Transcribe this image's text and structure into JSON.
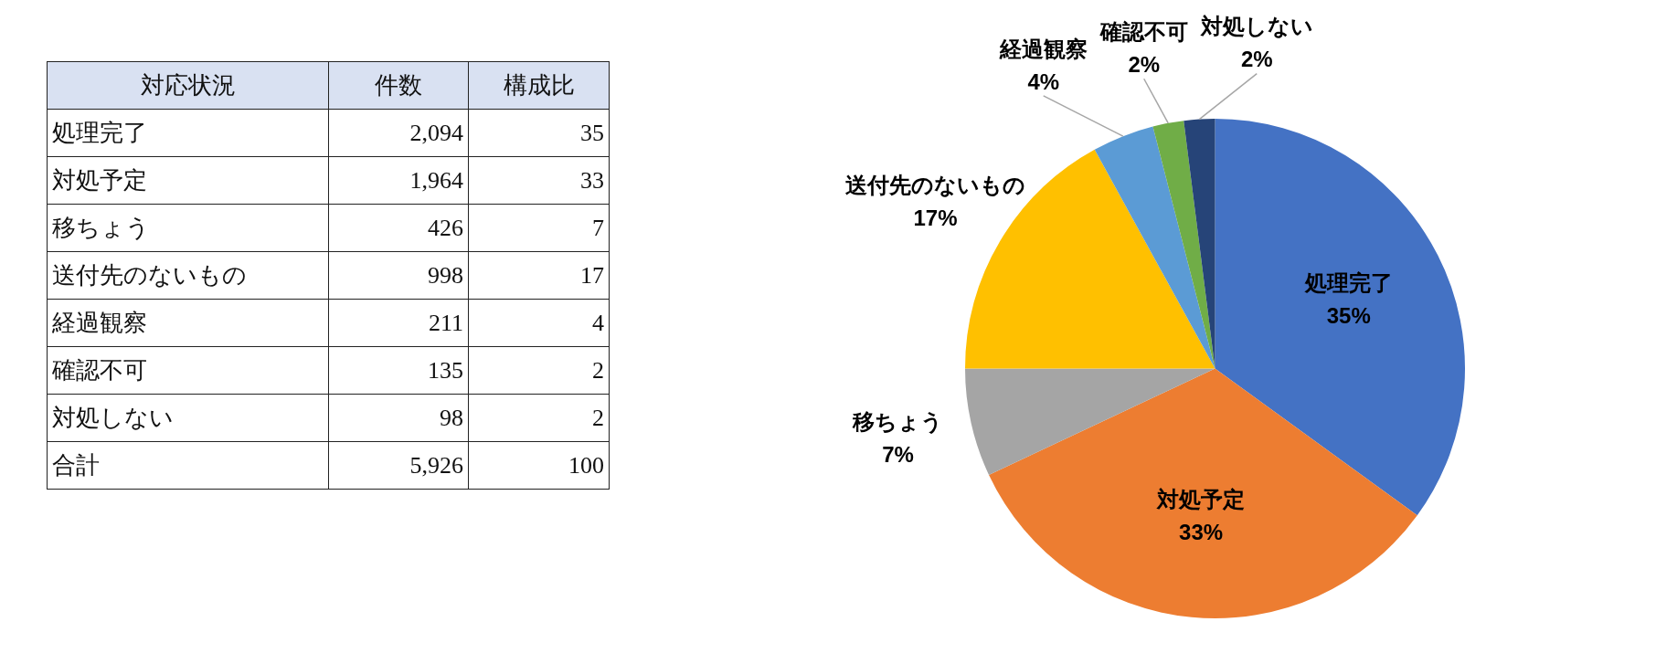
{
  "chart_data": {
    "type": "pie",
    "categories": [
      "処理完了",
      "対処予定",
      "移ちょう",
      "送付先のないもの",
      "経過観察",
      "確認不可",
      "対処しない"
    ],
    "values": [
      35,
      33,
      7,
      17,
      4,
      2,
      2
    ],
    "colors": [
      "#4472c4",
      "#ed7d31",
      "#a5a5a5",
      "#ffc000",
      "#5b9bd5",
      "#70ad47",
      "#264478"
    ],
    "value_labels": [
      "35%",
      "33%",
      "7%",
      "17%",
      "4%",
      "2%",
      "2%"
    ],
    "annotations": [
      "対応状況",
      "件数",
      "構成比",
      "2,094",
      "35",
      "1,964",
      "33",
      "426",
      "7",
      "998",
      "17",
      "211",
      "4",
      "135",
      "2",
      "98",
      "2",
      "合計",
      "5,926",
      "100"
    ]
  }
}
